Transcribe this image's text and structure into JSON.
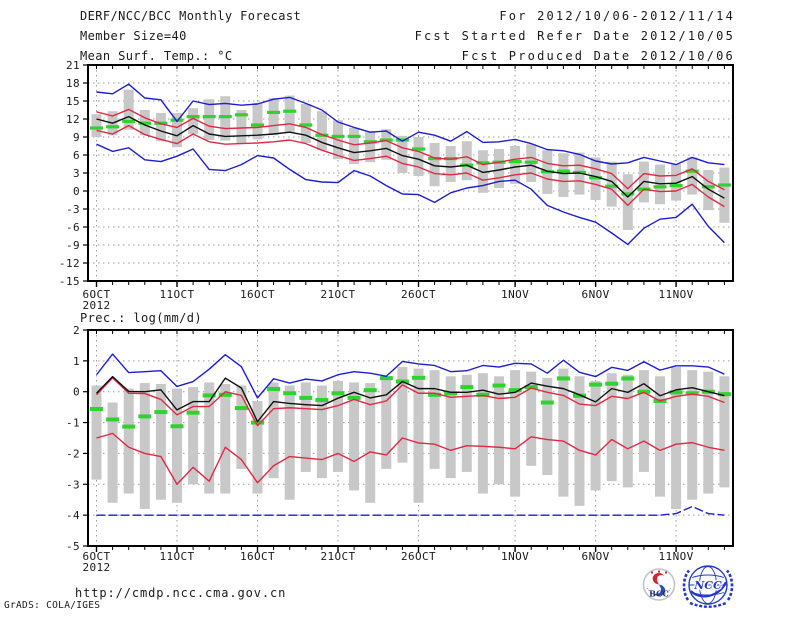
{
  "header": {
    "title": "DERF/NCC/BCC Monthly Forecast",
    "member_size": "Member Size=40",
    "for_range": "For 2012/10/06-2012/11/14",
    "fcst_started": "Fcst Started Refer Date 2012/10/05",
    "fcst_produced": "Fcst Produced Date 2012/10/06"
  },
  "panels": {
    "temp_title": "Mean Surf. Temp.: °C",
    "prec_title": "Prec.: log(mm/d)"
  },
  "footer": {
    "url": "http://cmdp.ncc.cma.gov.cn",
    "credit": "GrADS: COLA/IGES",
    "logos": [
      {
        "name": "bcc-logo",
        "text": "BCC"
      },
      {
        "name": "ncc-logo",
        "text": "NCC"
      }
    ]
  },
  "colors": {
    "blue": "#1d1dd2",
    "red": "#e02945",
    "black": "#111111",
    "green": "#2fd32f",
    "bar": "#c8c8c8",
    "grid": "#9b9b9b",
    "frame": "#000000"
  },
  "chart_data": [
    {
      "name": "temp-chart",
      "type": "line",
      "title": "Mean Surf. Temp.: °C",
      "ylabel": "°C",
      "xlabel": "",
      "ylim": [
        -15,
        21
      ],
      "ytick_step": 3,
      "n_days": 40,
      "green_h": 3.2,
      "x_ticks": [
        {
          "day": 0,
          "label": "6OCT",
          "sublabel": "2012"
        },
        {
          "day": 5,
          "label": "11OCT"
        },
        {
          "day": 10,
          "label": "16OCT"
        },
        {
          "day": 15,
          "label": "21OCT"
        },
        {
          "day": 20,
          "label": "26OCT"
        },
        {
          "day": 26,
          "label": "1NOV"
        },
        {
          "day": 31,
          "label": "6NOV"
        },
        {
          "day": 36,
          "label": "11NOV"
        }
      ],
      "series": [
        {
          "name": "temp-ens-max-line",
          "color": "blue",
          "values": [
            16.5,
            16.2,
            17.8,
            15.5,
            15.2,
            11.6,
            15.0,
            14.4,
            14.6,
            14.3,
            14.5,
            15.3,
            15.6,
            14.6,
            13.5,
            11.5,
            10.6,
            9.8,
            10.0,
            8.3,
            9.8,
            9.3,
            8.3,
            9.9,
            8.1,
            8.2,
            8.6,
            7.9,
            6.9,
            6.7,
            6.1,
            5.0,
            4.5,
            4.7,
            5.6,
            5.0,
            4.4,
            5.6,
            4.7,
            4.4
          ]
        },
        {
          "name": "temp-spread-upper-line",
          "color": "red",
          "values": [
            13.2,
            12.5,
            13.6,
            12.2,
            11.2,
            10.6,
            12.1,
            10.8,
            10.4,
            10.5,
            10.6,
            10.9,
            11.2,
            10.6,
            9.4,
            8.5,
            7.7,
            8.0,
            8.4,
            7.2,
            6.6,
            5.5,
            5.3,
            5.7,
            4.4,
            4.8,
            5.3,
            5.6,
            4.6,
            4.2,
            4.3,
            3.7,
            2.9,
            0.4,
            2.9,
            2.5,
            2.6,
            3.7,
            1.6,
            0.2
          ]
        },
        {
          "name": "temp-spread-lower-line",
          "color": "red",
          "values": [
            10.1,
            9.5,
            10.9,
            9.4,
            8.6,
            7.9,
            9.5,
            8.2,
            7.8,
            7.9,
            8.0,
            8.2,
            8.5,
            7.9,
            6.8,
            5.9,
            5.1,
            5.4,
            5.8,
            4.6,
            4.0,
            2.9,
            2.7,
            3.0,
            1.8,
            2.2,
            2.7,
            3.0,
            2.0,
            1.6,
            1.7,
            1.1,
            0.3,
            -2.4,
            0.3,
            -0.1,
            0.0,
            1.1,
            -1.0,
            -2.6
          ]
        },
        {
          "name": "temp-ens-min-line",
          "color": "blue",
          "values": [
            7.8,
            6.6,
            7.2,
            5.2,
            4.9,
            5.8,
            7.0,
            3.6,
            3.4,
            4.4,
            5.9,
            5.5,
            3.6,
            1.9,
            1.5,
            1.4,
            3.4,
            2.5,
            0.9,
            -0.5,
            -0.6,
            -1.9,
            -0.3,
            0.5,
            0.9,
            1.6,
            1.8,
            0.3,
            -2.4,
            -3.5,
            -4.4,
            -5.2,
            -7.0,
            -8.9,
            -6.2,
            -4.7,
            -4.4,
            -2.2,
            -5.9,
            -8.6
          ]
        },
        {
          "name": "temp-ens-mean-line",
          "color": "black",
          "values": [
            12.0,
            11.3,
            12.4,
            11.0,
            10.0,
            9.2,
            10.9,
            9.5,
            9.1,
            9.2,
            9.3,
            9.5,
            9.8,
            9.3,
            8.1,
            7.2,
            6.4,
            6.7,
            7.1,
            5.9,
            5.3,
            4.2,
            4.0,
            4.3,
            3.1,
            3.5,
            4.0,
            4.3,
            3.3,
            2.9,
            3.0,
            2.4,
            1.6,
            -1.0,
            1.6,
            1.2,
            1.3,
            2.4,
            0.3,
            -1.2
          ]
        }
      ],
      "bars": {
        "top": [
          12.8,
          13.3,
          16.9,
          13.5,
          13.0,
          13.0,
          13.8,
          15.3,
          15.8,
          13.5,
          14.7,
          15.5,
          15.9,
          14.5,
          13.3,
          11.8,
          10.5,
          10.0,
          10.3,
          9.2,
          9.0,
          8.0,
          7.5,
          8.3,
          6.8,
          7.0,
          7.5,
          7.8,
          6.8,
          6.3,
          6.4,
          5.6,
          4.9,
          2.8,
          4.9,
          4.4,
          4.5,
          5.6,
          3.5,
          3.9
        ],
        "bottom": [
          9.0,
          9.3,
          10.2,
          9.3,
          8.3,
          7.3,
          9.5,
          8.5,
          8.4,
          8.0,
          8.6,
          9.3,
          9.8,
          8.0,
          6.8,
          5.3,
          4.5,
          4.8,
          5.2,
          3.0,
          2.5,
          0.8,
          1.5,
          1.8,
          -0.3,
          0.5,
          1.2,
          1.5,
          -0.5,
          -1.0,
          -0.6,
          -1.5,
          -2.6,
          -6.5,
          -1.9,
          -2.2,
          -1.6,
          -0.6,
          -3.2,
          -5.3
        ]
      },
      "obs_dashes": [
        10.5,
        10.7,
        11.6,
        11.3,
        11.3,
        11.8,
        12.4,
        12.4,
        12.4,
        12.7,
        11.0,
        13.1,
        13.3,
        11.0,
        9.3,
        9.1,
        9.1,
        8.2,
        8.5,
        8.5,
        7.0,
        5.4,
        5.4,
        4.3,
        4.7,
        4.8,
        4.9,
        4.8,
        3.2,
        3.3,
        3.1,
        2.2,
        0.8,
        -0.5,
        0.3,
        0.7,
        0.9,
        3.3,
        0.7,
        1.0
      ]
    },
    {
      "name": "prec-chart",
      "type": "line",
      "title": "Prec.: log(mm/d)",
      "ylabel": "log(mm/d)",
      "xlabel": "",
      "ylim": [
        -5,
        2
      ],
      "ytick_step": 1,
      "n_days": 40,
      "green_h": 4,
      "x_ticks": [
        {
          "day": 0,
          "label": "6OCT",
          "sublabel": "2012"
        },
        {
          "day": 5,
          "label": "11OCT"
        },
        {
          "day": 10,
          "label": "16OCT"
        },
        {
          "day": 15,
          "label": "21OCT"
        },
        {
          "day": 20,
          "label": "26OCT"
        },
        {
          "day": 26,
          "label": "1NOV"
        },
        {
          "day": 31,
          "label": "6NOV"
        },
        {
          "day": 36,
          "label": "11NOV"
        }
      ],
      "series": [
        {
          "name": "prec-ens-max-line",
          "color": "blue",
          "values": [
            0.55,
            1.22,
            0.62,
            0.65,
            0.68,
            0.17,
            0.33,
            0.73,
            1.2,
            0.81,
            -0.2,
            0.42,
            0.28,
            0.41,
            0.35,
            0.55,
            0.65,
            0.6,
            0.5,
            0.98,
            0.9,
            0.85,
            0.65,
            0.68,
            0.85,
            0.8,
            0.92,
            0.9,
            0.6,
            1.02,
            0.63,
            0.49,
            0.79,
            0.69,
            0.97,
            0.7,
            0.84,
            0.84,
            0.8,
            0.57
          ]
        },
        {
          "name": "prec-spread-upper-line",
          "color": "red",
          "values": [
            -0.1,
            0.45,
            -0.05,
            -0.06,
            -0.25,
            -0.75,
            -0.48,
            -0.48,
            0.0,
            -0.12,
            -1.1,
            -0.55,
            -0.52,
            -0.55,
            -0.58,
            -0.45,
            -0.25,
            -0.42,
            -0.3,
            0.22,
            -0.05,
            -0.05,
            -0.18,
            -0.15,
            -0.12,
            -0.22,
            -0.18,
            0.12,
            -0.02,
            -0.12,
            -0.4,
            -0.45,
            -0.15,
            -0.22,
            -0.02,
            -0.3,
            -0.15,
            -0.08,
            -0.15,
            -0.35
          ]
        },
        {
          "name": "prec-spread-lower-line",
          "color": "red",
          "values": [
            -1.5,
            -1.35,
            -1.8,
            -2.0,
            -2.1,
            -3.0,
            -2.45,
            -2.9,
            -1.8,
            -2.2,
            -2.95,
            -2.4,
            -2.1,
            -2.15,
            -2.2,
            -2.0,
            -2.26,
            -1.95,
            -2.05,
            -1.5,
            -1.66,
            -1.7,
            -1.9,
            -1.75,
            -1.77,
            -1.8,
            -1.85,
            -1.46,
            -1.55,
            -1.6,
            -1.9,
            -2.05,
            -1.55,
            -1.85,
            -1.6,
            -1.9,
            -1.7,
            -1.65,
            -1.8,
            -1.9
          ]
        },
        {
          "name": "prec-ens-min-line",
          "color": "blue",
          "dashed": true,
          "values": [
            -4,
            -4,
            -4,
            -4,
            -4,
            -4,
            -4,
            -4,
            -4,
            -4,
            -4,
            -4,
            -4,
            -4,
            -4,
            -4,
            -4,
            -4,
            -4,
            -4,
            -4,
            -4,
            -4,
            -4,
            -4,
            -4,
            -4,
            -4,
            -4,
            -4,
            -4,
            -4,
            -4,
            -4,
            -4,
            -4,
            -3.95,
            -3.72,
            -3.95,
            -4
          ]
        },
        {
          "name": "prec-ens-mean-line",
          "color": "black",
          "values": [
            -0.05,
            0.49,
            0.01,
            0.0,
            0.06,
            -0.59,
            -0.32,
            -0.32,
            0.44,
            0.12,
            -0.97,
            -0.32,
            -0.38,
            -0.42,
            -0.45,
            -0.21,
            -0.02,
            -0.2,
            -0.1,
            0.33,
            0.1,
            0.1,
            -0.02,
            -0.02,
            0.05,
            -0.08,
            -0.02,
            0.28,
            0.18,
            0.1,
            -0.1,
            -0.33,
            0.1,
            -0.02,
            0.26,
            -0.13,
            0.06,
            0.13,
            0.0,
            -0.13
          ]
        }
      ],
      "bars": {
        "top": [
          0.2,
          -0.35,
          0.1,
          0.28,
          0.25,
          0.1,
          0.15,
          0.3,
          0.25,
          0.2,
          -0.3,
          0.3,
          0.2,
          0.3,
          0.2,
          0.35,
          0.3,
          0.28,
          0.5,
          0.8,
          0.75,
          0.7,
          0.5,
          0.55,
          0.6,
          0.5,
          0.7,
          0.65,
          0.45,
          0.75,
          0.5,
          0.35,
          0.6,
          0.55,
          0.7,
          0.5,
          0.8,
          0.7,
          0.65,
          0.5
        ],
        "bottom": [
          -2.85,
          -3.6,
          -3.3,
          -3.8,
          -3.5,
          -3.6,
          -3.0,
          -3.3,
          -3.3,
          -2.5,
          -3.3,
          -2.8,
          -3.5,
          -2.6,
          -2.8,
          -2.6,
          -3.2,
          -3.6,
          -2.5,
          -2.3,
          -3.6,
          -2.5,
          -2.8,
          -2.6,
          -3.3,
          -3.0,
          -3.4,
          -2.4,
          -2.7,
          -3.4,
          -3.7,
          -3.2,
          -2.9,
          -3.1,
          -2.6,
          -3.4,
          -3.8,
          -3.5,
          -3.3,
          -3.1
        ]
      },
      "obs_dashes": [
        -0.56,
        -0.9,
        -1.13,
        -0.8,
        -0.66,
        -1.12,
        -0.68,
        -0.12,
        -0.1,
        -0.53,
        -1.0,
        0.09,
        -0.05,
        -0.2,
        -0.27,
        -0.05,
        -0.2,
        0.05,
        0.44,
        0.33,
        0.45,
        -0.1,
        -0.05,
        0.15,
        -0.1,
        0.2,
        0.05,
        0.15,
        -0.35,
        0.43,
        -0.13,
        0.23,
        0.26,
        0.43,
        0.0,
        -0.3,
        -0.02,
        -0.05,
        0.0,
        -0.08
      ]
    }
  ]
}
